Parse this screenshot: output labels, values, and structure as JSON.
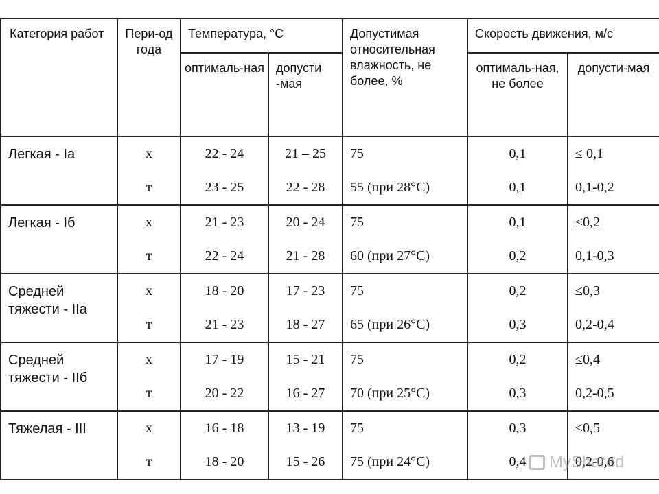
{
  "header": {
    "category": "Категория работ",
    "period": "Пери-од года",
    "temperature": "Температура, °С",
    "humidity": "Допустимая относительная влажность, не более,  %",
    "speed": "Скорость движения, м/с",
    "temp_opt": "оптималь-ная",
    "temp_allow": "допусти -мая",
    "speed_opt": "оптималь-ная, не более",
    "speed_allow": "допусти-мая"
  },
  "rows": [
    {
      "category": "Легкая - Iа",
      "cold": {
        "period": "х",
        "t_opt": "22 - 24",
        "t_allow": "21 – 25",
        "humidity": "75",
        "v_opt": "0,1",
        "v_allow": "≤ 0,1"
      },
      "warm": {
        "period": "т",
        "t_opt": "23 - 25",
        "t_allow": "22 - 28",
        "humidity": "55 (при 28°С)",
        "v_opt": "0,1",
        "v_allow": "0,1-0,2"
      }
    },
    {
      "category": "Легкая - Iб",
      "cold": {
        "period": "х",
        "t_opt": "21 - 23",
        "t_allow": "20 - 24",
        "humidity": "75",
        "v_opt": "0,1",
        "v_allow": "≤0,2"
      },
      "warm": {
        "period": "т",
        "t_opt": "22 - 24",
        "t_allow": "21 - 28",
        "humidity": "60 (при 27°С)",
        "v_opt": "0,2",
        "v_allow": "0,1-0,3"
      }
    },
    {
      "category": "Средней тяжести - IIа",
      "cold": {
        "period": "х",
        "t_opt": "18 - 20",
        "t_allow": "17 - 23",
        "humidity": "75",
        "v_opt": "0,2",
        "v_allow": "≤0,3"
      },
      "warm": {
        "period": "т",
        "t_opt": "21 - 23",
        "t_allow": "18 - 27",
        "humidity": "65 (при 26°С)",
        "v_opt": "0,3",
        "v_allow": "0,2-0,4"
      }
    },
    {
      "category": "Средней тяжести - IIб",
      "cold": {
        "period": "х",
        "t_opt": "17 - 19",
        "t_allow": "15 - 21",
        "humidity": "75",
        "v_opt": "0,2",
        "v_allow": "≤0,4"
      },
      "warm": {
        "period": "т",
        "t_opt": "20 - 22",
        "t_allow": "16 - 27",
        "humidity": "70 (при 25°С)",
        "v_opt": "0,3",
        "v_allow": "0,2-0,5"
      }
    },
    {
      "category": "Тяжелая - III",
      "cold": {
        "period": "х",
        "t_opt": "16 - 18",
        "t_allow": "13 - 19",
        "humidity": "75",
        "v_opt": "0,3",
        "v_allow": "≤0,5"
      },
      "warm": {
        "period": "т",
        "t_opt": "18 - 20",
        "t_allow": "15 - 26",
        "humidity": "75 (при 24°С)",
        "v_opt": "0,4",
        "v_allow": "0,2-0,6"
      }
    }
  ],
  "watermark": {
    "text": "MyShared",
    "icon": "presentation-board-icon"
  }
}
